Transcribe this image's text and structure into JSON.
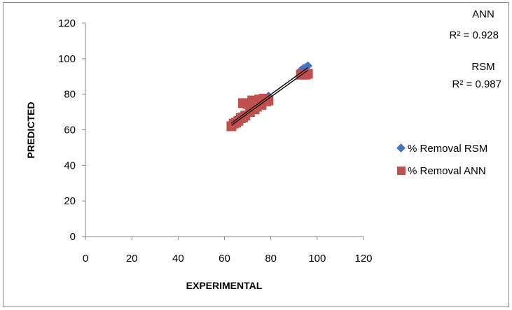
{
  "chart_data": {
    "type": "scatter",
    "xlabel": "EXPERIMENTAL",
    "ylabel": "PREDICTED",
    "xlim": [
      0,
      120
    ],
    "ylim": [
      0,
      120
    ],
    "xticks": [
      0,
      20,
      40,
      60,
      80,
      100,
      120
    ],
    "yticks": [
      0,
      20,
      40,
      60,
      80,
      100,
      120
    ],
    "grid": false,
    "legend_position": "right",
    "colors": {
      "rsm": "#4472c4",
      "ann": "#c0504d"
    },
    "series": [
      {
        "name": "% Removal RSM",
        "marker": "diamond",
        "points": [
          [
            63,
            62
          ],
          [
            64,
            63
          ],
          [
            65,
            64
          ],
          [
            66,
            65.5
          ],
          [
            67,
            66.5
          ],
          [
            68,
            67.5
          ],
          [
            69,
            68.5
          ],
          [
            70,
            69.5
          ],
          [
            71,
            70.5
          ],
          [
            72,
            71.5
          ],
          [
            73,
            72.5
          ],
          [
            74,
            73.5
          ],
          [
            75,
            74.5
          ],
          [
            76,
            75.5
          ],
          [
            77,
            76.5
          ],
          [
            78,
            77.5
          ],
          [
            79,
            79
          ],
          [
            93,
            93.5
          ],
          [
            94,
            94.5
          ],
          [
            95,
            95
          ],
          [
            96,
            96
          ]
        ]
      },
      {
        "name": "% Removal ANN",
        "marker": "square",
        "points": [
          [
            63,
            62
          ],
          [
            64,
            63.5
          ],
          [
            65,
            64
          ],
          [
            66,
            65
          ],
          [
            67,
            66.5
          ],
          [
            68,
            67
          ],
          [
            68,
            75
          ],
          [
            69,
            68
          ],
          [
            70,
            74.5
          ],
          [
            71,
            70
          ],
          [
            72,
            76.5
          ],
          [
            73,
            71.5
          ],
          [
            74,
            73
          ],
          [
            75,
            77
          ],
          [
            76,
            74
          ],
          [
            77,
            77.5
          ],
          [
            78,
            76
          ],
          [
            79,
            76.5
          ],
          [
            93,
            91
          ],
          [
            95,
            91
          ],
          [
            96,
            91.5
          ]
        ]
      }
    ],
    "trendlines": [
      {
        "label": "ANN",
        "r2": "R² = 0.928",
        "from": [
          63,
          62.5
        ],
        "to": [
          96,
          93.5
        ]
      },
      {
        "label": "RSM",
        "r2": "R² = 0.987",
        "from": [
          63,
          63.8
        ],
        "to": [
          96,
          95
        ]
      }
    ]
  }
}
